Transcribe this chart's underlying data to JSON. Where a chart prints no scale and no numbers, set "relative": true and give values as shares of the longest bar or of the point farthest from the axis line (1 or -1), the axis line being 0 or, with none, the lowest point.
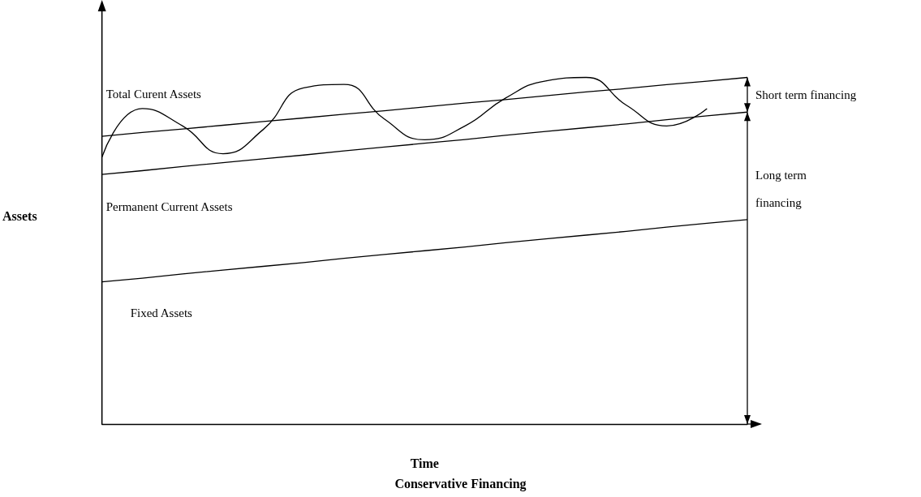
{
  "chart_data": {
    "type": "line",
    "title": "Conservative Financing",
    "xlabel": "Time",
    "ylabel": "Assets",
    "relative": true,
    "marker": "none",
    "categories": [
      null,
      null,
      null,
      null,
      null,
      null,
      null,
      null,
      null,
      null,
      null,
      null,
      null,
      null,
      null,
      null,
      null
    ],
    "series": [
      {
        "name": "Total Curent Assets",
        "color": "#000000",
        "values": [
          0.77,
          0.91,
          0.86,
          0.78,
          0.85,
          0.97,
          0.98,
          0.88,
          0.82,
          0.86,
          0.94,
          0.99,
          1.0,
          0.92,
          0.86,
          0.91,
          null
        ]
      },
      {
        "color": "#000000",
        "values": [
          0.83,
          0.841,
          0.851,
          0.862,
          0.873,
          0.883,
          0.894,
          0.904,
          0.915,
          0.926,
          0.936,
          0.947,
          0.958,
          0.968,
          0.979,
          0.989,
          1.0
        ]
      },
      {
        "name": "Permanent Current Assets",
        "color": "#000000",
        "values": [
          0.72,
          0.731,
          0.743,
          0.754,
          0.765,
          0.776,
          0.788,
          0.799,
          0.81,
          0.821,
          0.833,
          0.844,
          0.855,
          0.866,
          0.878,
          0.889,
          0.9
        ]
      },
      {
        "name": "Fixed Assets",
        "color": "#000000",
        "values": [
          0.41,
          0.421,
          0.433,
          0.444,
          0.455,
          0.466,
          0.478,
          0.489,
          0.5,
          0.511,
          0.523,
          0.534,
          0.545,
          0.556,
          0.568,
          0.579,
          0.59
        ]
      }
    ],
    "annotations": [
      "Short term financing",
      "Long term financing"
    ]
  }
}
